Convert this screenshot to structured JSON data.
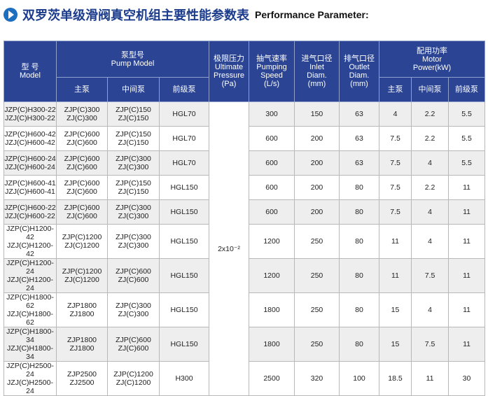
{
  "title": {
    "cn": "双罗茨单级滑阀真空机组主要性能参数表",
    "en": "Performance Parameter:"
  },
  "table": {
    "header_top": [
      {
        "lines": [
          "型  号",
          "Model"
        ]
      },
      {
        "lines": [
          "泵型号",
          "Pump Model"
        ]
      },
      {
        "lines": [
          "极限压力",
          "Ultimate",
          "Pressure",
          "(Pa)"
        ]
      },
      {
        "lines": [
          "抽气速率",
          "Pumping",
          "Speed",
          "(L/s)"
        ]
      },
      {
        "lines": [
          "进气口径",
          "Inlet",
          "Diam.",
          "(mm)"
        ]
      },
      {
        "lines": [
          "排气口径",
          "Outlet",
          "Diam.",
          "(mm)"
        ]
      },
      {
        "lines": [
          "配用功率",
          "Motor",
          "Power(kW)"
        ]
      }
    ],
    "header_sub": [
      "主泵",
      "中间泵",
      "前级泵",
      "主泵",
      "中间泵",
      "前级泵"
    ],
    "pressure": "2x10⁻²",
    "rows": [
      [
        [
          "JZP(C)H300-22",
          "JZJ(C)H300-22"
        ],
        [
          "ZJP(C)300",
          "ZJ(C)300"
        ],
        [
          "ZJP(C)150",
          "ZJ(C)150"
        ],
        [
          "HGL70"
        ],
        [
          "300"
        ],
        [
          "150"
        ],
        [
          "63"
        ],
        [
          "4"
        ],
        [
          "2.2"
        ],
        [
          "5.5"
        ]
      ],
      [
        [
          "JZP(C)H600-42",
          "JZJ(C)H600-42"
        ],
        [
          "ZJP(C)600",
          "ZJ(C)600"
        ],
        [
          "ZJP(C)150",
          "ZJ(C)150"
        ],
        [
          "HGL70"
        ],
        [
          "600"
        ],
        [
          "200"
        ],
        [
          "63"
        ],
        [
          "7.5"
        ],
        [
          "2.2"
        ],
        [
          "5.5"
        ]
      ],
      [
        [
          "JZP(C)H600-24",
          "JZJ(C)H600-24"
        ],
        [
          "ZJP(C)600",
          "ZJ(C)600"
        ],
        [
          "ZJP(C)300",
          "ZJ(C)300"
        ],
        [
          "HGL70"
        ],
        [
          "600"
        ],
        [
          "200"
        ],
        [
          "63"
        ],
        [
          "7.5"
        ],
        [
          "4"
        ],
        [
          "5.5"
        ]
      ],
      [
        [
          "JZP(C)H600-41",
          "JZJ(C)H600-41"
        ],
        [
          "ZJP(C)600",
          "ZJ(C)600"
        ],
        [
          "ZJP(C)150",
          "ZJ(C)150"
        ],
        [
          "HGL150"
        ],
        [
          "600"
        ],
        [
          "200"
        ],
        [
          "80"
        ],
        [
          "7.5"
        ],
        [
          "2.2"
        ],
        [
          "11"
        ]
      ],
      [
        [
          "JZP(C)H600-22",
          "JZJ(C)H600-22"
        ],
        [
          "ZJP(C)600",
          "ZJ(C)600"
        ],
        [
          "ZJP(C)300",
          "ZJ(C)300"
        ],
        [
          "HGL150"
        ],
        [
          "600"
        ],
        [
          "200"
        ],
        [
          "80"
        ],
        [
          "7.5"
        ],
        [
          "4"
        ],
        [
          "11"
        ]
      ],
      [
        [
          "JZP(C)H1200-42",
          "JZJ(C)H1200-42"
        ],
        [
          "ZJP(C)1200",
          "ZJ(C)1200"
        ],
        [
          "ZJP(C)300",
          "ZJ(C)300"
        ],
        [
          "HGL150"
        ],
        [
          "1200"
        ],
        [
          "250"
        ],
        [
          "80"
        ],
        [
          "11"
        ],
        [
          "4"
        ],
        [
          "11"
        ]
      ],
      [
        [
          "JZP(C)H1200-24",
          "JZJ(C)H1200-24"
        ],
        [
          "ZJP(C)1200",
          "ZJ(C)1200"
        ],
        [
          "ZJP(C)600",
          "ZJ(C)600"
        ],
        [
          "HGL150"
        ],
        [
          "1200"
        ],
        [
          "250"
        ],
        [
          "80"
        ],
        [
          "11"
        ],
        [
          "7.5"
        ],
        [
          "11"
        ]
      ],
      [
        [
          "JZP(C)H1800-62",
          "JZJ(C)H1800-62"
        ],
        [
          "ZJP1800",
          "ZJ1800"
        ],
        [
          "ZJP(C)300",
          "ZJ(C)300"
        ],
        [
          "HGL150"
        ],
        [
          "1800"
        ],
        [
          "250"
        ],
        [
          "80"
        ],
        [
          "15"
        ],
        [
          "4"
        ],
        [
          "11"
        ]
      ],
      [
        [
          "JZP(C)H1800-34",
          "JZJ(C)H1800-34"
        ],
        [
          "ZJP1800",
          "ZJ1800"
        ],
        [
          "ZJP(C)600",
          "ZJ(C)600"
        ],
        [
          "HGL150"
        ],
        [
          "1800"
        ],
        [
          "250"
        ],
        [
          "80"
        ],
        [
          "15"
        ],
        [
          "7.5"
        ],
        [
          "11"
        ]
      ],
      [
        [
          "JZP(C)H2500-24",
          "JZJ(C)H2500-24"
        ],
        [
          "ZJP2500",
          "ZJ2500"
        ],
        [
          "ZJP(C)1200",
          "ZJ(C)1200"
        ],
        [
          "H300"
        ],
        [
          "2500"
        ],
        [
          "320"
        ],
        [
          "100"
        ],
        [
          "18.5"
        ],
        [
          "11"
        ],
        [
          "30"
        ]
      ]
    ]
  }
}
